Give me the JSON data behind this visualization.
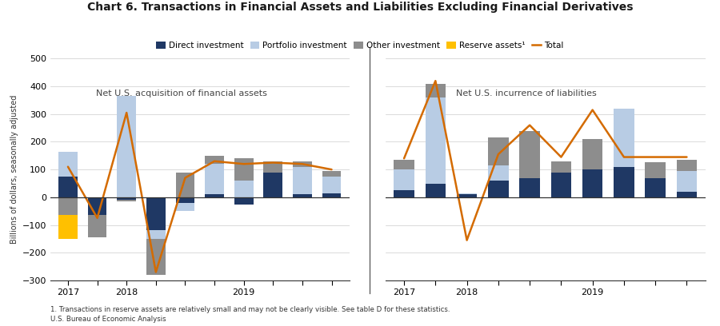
{
  "title": "Chart 6. Transactions in Financial Assets and Liabilities Excluding Financial Derivatives",
  "ylabel": "Billions of dollars, seasonally adjusted",
  "footnote1": "1. Transactions in reserve assets are relatively small and may not be clearly visible. See table D for these statistics.",
  "footnote2": "U.S. Bureau of Economic Analysis",
  "ylim": [
    -300,
    500
  ],
  "yticks": [
    -300,
    -200,
    -100,
    0,
    100,
    200,
    300,
    400,
    500
  ],
  "left_label": "Net U.S. acquisition of financial assets",
  "right_label": "Net U.S. incurrence of liabilities",
  "colors": {
    "direct": "#1f3864",
    "portfolio": "#b8cce4",
    "other": "#8d8d8d",
    "reserve": "#ffc000",
    "total": "#d46b00"
  },
  "left_xtick_labels": [
    "2017",
    "",
    "2018",
    "",
    "",
    "",
    "2019",
    "",
    "",
    ""
  ],
  "left_direct": [
    75,
    -65,
    -10,
    -120,
    -20,
    10,
    -25,
    90,
    10,
    15
  ],
  "left_portfolio": [
    90,
    0,
    365,
    -30,
    -30,
    110,
    60,
    0,
    100,
    60
  ],
  "left_other": [
    -65,
    -80,
    -5,
    -130,
    90,
    30,
    80,
    40,
    20,
    20
  ],
  "left_reserve": [
    -85,
    0,
    0,
    0,
    0,
    0,
    0,
    0,
    0,
    0
  ],
  "left_total": [
    110,
    -75,
    305,
    -270,
    70,
    130,
    120,
    125,
    120,
    100
  ],
  "right_xtick_labels": [
    "2017",
    "",
    "2018",
    "",
    "",
    "",
    "2019",
    "",
    "",
    ""
  ],
  "right_direct": [
    25,
    50,
    10,
    60,
    70,
    90,
    100,
    110,
    70,
    20
  ],
  "right_portfolio": [
    75,
    310,
    5,
    55,
    0,
    0,
    0,
    210,
    0,
    75
  ],
  "right_other": [
    35,
    50,
    0,
    100,
    170,
    40,
    110,
    0,
    55,
    40
  ],
  "right_reserve": [
    0,
    0,
    0,
    0,
    0,
    0,
    0,
    0,
    0,
    0
  ],
  "right_total": [
    140,
    420,
    -155,
    155,
    260,
    145,
    315,
    145,
    145,
    145
  ]
}
